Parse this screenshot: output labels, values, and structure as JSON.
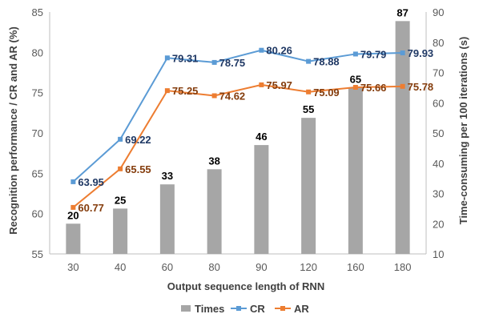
{
  "chart_data": {
    "type": "bar+line",
    "categories": [
      "30",
      "40",
      "60",
      "80",
      "90",
      "120",
      "160",
      "180"
    ],
    "xlabel": "Output sequence length of RNN",
    "ylabel_left": "Recognition performance / CR and AR (%)",
    "ylabel_right": "Time-consuming per 100 iterations (s)",
    "ylim_left": [
      55,
      85
    ],
    "yticks_left": [
      "55",
      "60",
      "65",
      "70",
      "75",
      "80",
      "85"
    ],
    "ylim_right": [
      10,
      90
    ],
    "yticks_right": [
      "10",
      "20",
      "30",
      "40",
      "50",
      "60",
      "70",
      "80",
      "90"
    ],
    "legend_position": "bottom",
    "grid": false,
    "series": [
      {
        "name": "Times",
        "kind": "bar",
        "axis": "right",
        "color": "#a6a6a6",
        "values": [
          20,
          25,
          33,
          38,
          46,
          55,
          65,
          87
        ],
        "labels": [
          "20",
          "25",
          "33",
          "38",
          "46",
          "55",
          "65",
          "87"
        ]
      },
      {
        "name": "CR",
        "kind": "line",
        "axis": "left",
        "color": "#5b9bd5",
        "values": [
          63.95,
          69.22,
          79.31,
          78.75,
          80.26,
          78.88,
          79.79,
          79.93
        ],
        "labels": [
          "63.95",
          "69.22",
          "79.31",
          "78.75",
          "80.26",
          "78.88",
          "79.79",
          "79.93"
        ]
      },
      {
        "name": "AR",
        "kind": "line",
        "axis": "left",
        "color": "#ed7d31",
        "values": [
          60.77,
          65.55,
          75.25,
          74.62,
          75.97,
          75.09,
          75.66,
          75.78
        ],
        "labels": [
          "60.77",
          "65.55",
          "75.25",
          "74.62",
          "75.97",
          "75.09",
          "75.66",
          "75.78"
        ]
      }
    ]
  }
}
